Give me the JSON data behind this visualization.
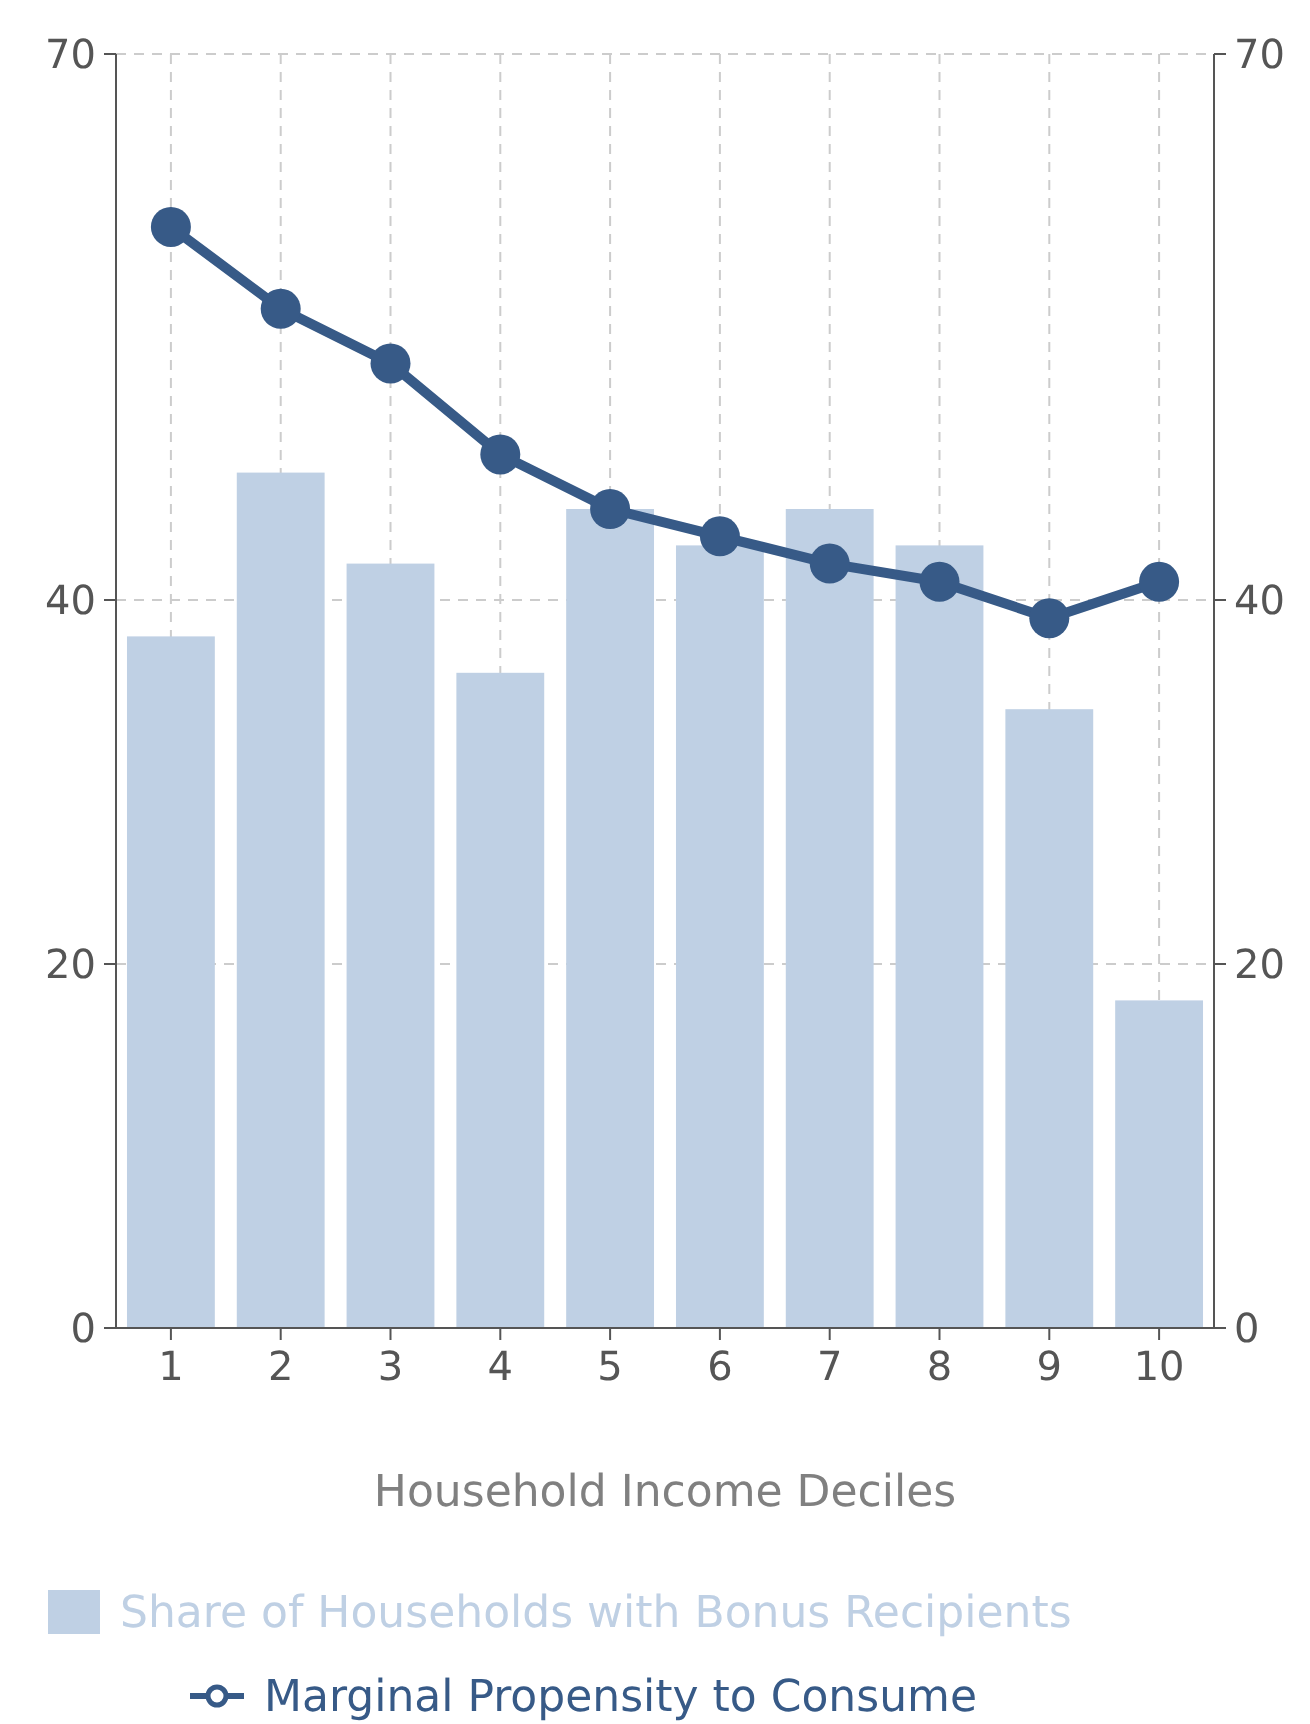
{
  "chart_data": {
    "type": "bar",
    "xlabel": "Household Income Deciles",
    "categories": [
      "1",
      "2",
      "3",
      "4",
      "5",
      "6",
      "7",
      "8",
      "9",
      "10"
    ],
    "series": [
      {
        "name": "Share of Households with Bonus Recipients",
        "color": "#bfd0e4",
        "values": [
          38,
          47,
          42,
          36,
          45,
          43,
          45,
          43,
          34,
          18
        ]
      },
      {
        "name": "Marginal Propensity to Consume",
        "type": "line",
        "color": "#375a87",
        "marker": "circle",
        "values": [
          60.5,
          56,
          53,
          48,
          45,
          43.5,
          42,
          41,
          39,
          41
        ]
      }
    ],
    "ylim": [
      0,
      70
    ],
    "yticks": [
      0,
      20,
      40,
      70
    ],
    "y2lim": [
      0,
      70
    ],
    "y2ticks": [
      0,
      20,
      40,
      70
    ],
    "grid": true,
    "legend": "bottom"
  }
}
